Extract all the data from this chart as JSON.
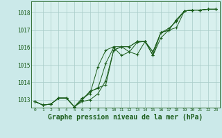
{
  "bg_color": "#cbe9e9",
  "plot_bg_color": "#d8f0ee",
  "line_color": "#1a5c1a",
  "grid_color": "#a8ccc8",
  "xlabel": "Graphe pression niveau de la mer (hPa)",
  "xlabel_fontsize": 7,
  "ylabel_ticks": [
    1013,
    1014,
    1015,
    1016,
    1017,
    1018
  ],
  "xlim": [
    -0.5,
    23.5
  ],
  "ylim": [
    1012.55,
    1018.65
  ],
  "xticks": [
    0,
    1,
    2,
    3,
    4,
    5,
    6,
    7,
    8,
    9,
    10,
    11,
    12,
    13,
    14,
    15,
    16,
    17,
    18,
    19,
    20,
    21,
    22,
    23
  ],
  "series": [
    [
      1012.9,
      1012.7,
      1012.75,
      1013.1,
      1013.1,
      1012.6,
      1012.9,
      1013.0,
      1013.35,
      1014.1,
      1015.85,
      1016.05,
      1016.05,
      1016.35,
      1016.35,
      1015.55,
      1016.55,
      1017.0,
      1017.15,
      1018.1,
      1018.15,
      1018.15,
      1018.2,
      1018.2
    ],
    [
      1012.9,
      1012.7,
      1012.75,
      1013.1,
      1013.1,
      1012.6,
      1013.1,
      1013.35,
      1014.9,
      1015.85,
      1016.05,
      1016.05,
      1015.75,
      1016.3,
      1016.35,
      1015.75,
      1016.85,
      1017.1,
      1017.5,
      1018.1,
      1018.15,
      1018.15,
      1018.2,
      1018.2
    ],
    [
      1012.9,
      1012.7,
      1012.75,
      1013.1,
      1013.1,
      1012.6,
      1013.0,
      1013.5,
      1013.65,
      1015.1,
      1016.0,
      1015.55,
      1015.75,
      1015.6,
      1016.35,
      1015.75,
      1016.85,
      1017.0,
      1017.6,
      1018.1,
      1018.15,
      1018.15,
      1018.2,
      1018.2
    ],
    [
      1012.9,
      1012.7,
      1012.75,
      1013.1,
      1013.1,
      1012.6,
      1013.0,
      1013.45,
      1013.7,
      1013.85,
      1015.85,
      1016.05,
      1016.05,
      1016.35,
      1016.35,
      1015.55,
      1016.85,
      1017.0,
      1017.6,
      1018.1,
      1018.15,
      1018.15,
      1018.2,
      1018.2
    ]
  ]
}
